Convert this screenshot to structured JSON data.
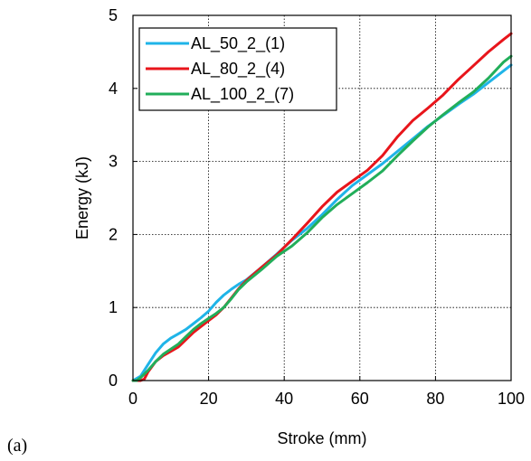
{
  "panel_label": "(a)",
  "chart_data": {
    "type": "line",
    "xlabel": "Stroke (mm)",
    "ylabel": "Energy (kJ)",
    "xlim": [
      0,
      100
    ],
    "ylim": [
      0,
      5
    ],
    "xticks": [
      0,
      20,
      40,
      60,
      80,
      100
    ],
    "yticks": [
      0,
      1,
      2,
      3,
      4,
      5
    ],
    "grid": "dotted",
    "legend_position": "top-left",
    "series": [
      {
        "name": "AL_50_2_(1)",
        "color": "#1FB4E8",
        "x": [
          0,
          2,
          4,
          6,
          8,
          10,
          12,
          14,
          16,
          18,
          20,
          22,
          24,
          26,
          28,
          30,
          34,
          38,
          42,
          46,
          50,
          54,
          58,
          62,
          66,
          70,
          74,
          78,
          82,
          86,
          90,
          94,
          98,
          100
        ],
        "y": [
          0,
          0.06,
          0.22,
          0.38,
          0.5,
          0.58,
          0.64,
          0.7,
          0.78,
          0.86,
          0.95,
          1.07,
          1.17,
          1.25,
          1.32,
          1.38,
          1.55,
          1.73,
          1.92,
          2.08,
          2.27,
          2.48,
          2.67,
          2.82,
          2.97,
          3.14,
          3.31,
          3.48,
          3.63,
          3.78,
          3.92,
          4.08,
          4.24,
          4.32
        ]
      },
      {
        "name": "AL_80_2_(4)",
        "color": "#E8151B",
        "x": [
          0,
          2,
          3,
          4,
          6,
          8,
          10,
          12,
          14,
          16,
          18,
          20,
          22,
          24,
          26,
          28,
          30,
          34,
          38,
          42,
          46,
          50,
          54,
          58,
          62,
          66,
          70,
          74,
          78,
          82,
          86,
          90,
          94,
          98,
          100
        ],
        "y": [
          0,
          0,
          0.02,
          0.12,
          0.26,
          0.34,
          0.4,
          0.46,
          0.56,
          0.66,
          0.74,
          0.82,
          0.9,
          1.0,
          1.13,
          1.26,
          1.37,
          1.55,
          1.72,
          1.93,
          2.15,
          2.38,
          2.58,
          2.73,
          2.88,
          3.08,
          3.34,
          3.56,
          3.73,
          3.91,
          4.12,
          4.31,
          4.5,
          4.67,
          4.75
        ]
      },
      {
        "name": "AL_100_2_(7)",
        "color": "#22AE5A",
        "x": [
          0,
          1,
          2,
          4,
          6,
          8,
          10,
          12,
          14,
          16,
          18,
          20,
          22,
          24,
          26,
          28,
          30,
          34,
          38,
          42,
          46,
          50,
          54,
          58,
          62,
          66,
          70,
          74,
          78,
          82,
          86,
          90,
          94,
          98,
          100
        ],
        "y": [
          0,
          0,
          0.04,
          0.14,
          0.26,
          0.36,
          0.43,
          0.5,
          0.6,
          0.7,
          0.78,
          0.85,
          0.92,
          1.0,
          1.12,
          1.25,
          1.35,
          1.52,
          1.7,
          1.84,
          2.02,
          2.23,
          2.41,
          2.56,
          2.71,
          2.87,
          3.08,
          3.28,
          3.47,
          3.64,
          3.8,
          3.95,
          4.14,
          4.36,
          4.44
        ]
      }
    ]
  }
}
